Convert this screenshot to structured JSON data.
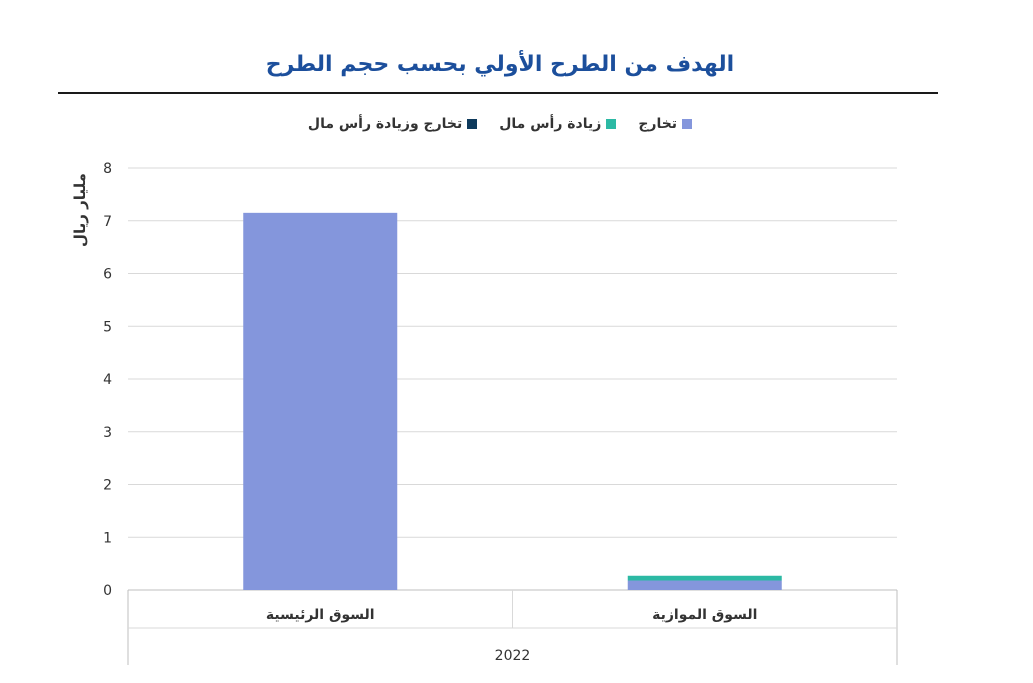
{
  "chart_data": {
    "type": "bar",
    "title": "الهدف من الطرح الأولي بحسب حجم الطرح",
    "ylabel": "مليار ريال",
    "xlabel": "",
    "group_label": "2022",
    "categories": [
      "السوق الرئيسية",
      "السوق الموازية"
    ],
    "ylim": [
      0,
      8
    ],
    "yticks": [
      0,
      1,
      2,
      3,
      4,
      5,
      6,
      7,
      8
    ],
    "grid": true,
    "legend_position": "top",
    "stacked": true,
    "series": [
      {
        "name": "تخارج",
        "color": "#8496dc",
        "values": [
          7.15,
          0.18
        ]
      },
      {
        "name": "زيادة رأس مال",
        "color": "#2cb9a4",
        "values": [
          0,
          0.09
        ]
      },
      {
        "name": "تخارج وزيادة رأس مال",
        "color": "#0e3a5c",
        "values": [
          0,
          0
        ]
      }
    ]
  }
}
